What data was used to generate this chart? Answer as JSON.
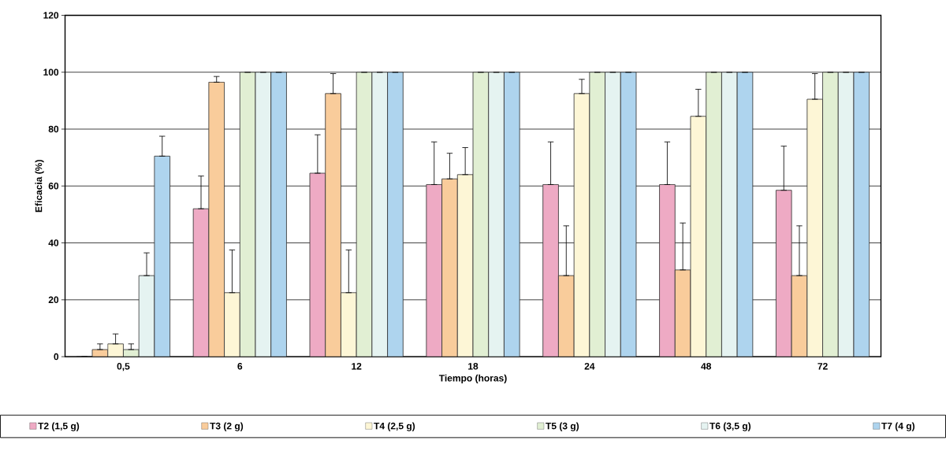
{
  "chart_data": {
    "type": "bar",
    "xlabel": "Tiempo (horas)",
    "ylabel": "Eficacia (%)",
    "categories": [
      "0,5",
      "6",
      "12",
      "18",
      "24",
      "48",
      "72"
    ],
    "ylim": [
      0,
      120
    ],
    "yticks": [
      0,
      20,
      40,
      60,
      80,
      100,
      120
    ],
    "grid": "y",
    "legend": "bottom",
    "series": [
      {
        "name": "T2 (1,5 g)",
        "color": "#eeaac4",
        "values": [
          0,
          52,
          64.5,
          60.5,
          60.5,
          60.5,
          58.5
        ],
        "errors": [
          null,
          [
            52,
            63.5
          ],
          [
            64.5,
            78
          ],
          [
            60.5,
            75.5
          ],
          [
            60.5,
            75.5
          ],
          [
            60.5,
            75.5
          ],
          [
            58.5,
            74
          ]
        ]
      },
      {
        "name": "T3 (2 g)",
        "color": "#f9cc9b",
        "values": [
          2.5,
          96.5,
          92.5,
          62.5,
          28.5,
          30.5,
          28.5
        ],
        "errors": [
          [
            2.5,
            4.5
          ],
          [
            96.5,
            98.5
          ],
          [
            92.5,
            99.5
          ],
          [
            62.5,
            71.5
          ],
          [
            28.5,
            46
          ],
          [
            30.5,
            47
          ],
          [
            28.5,
            46
          ]
        ]
      },
      {
        "name": "T4 (2,5 g)",
        "color": "#fdf6d6",
        "values": [
          4.5,
          22.5,
          22.5,
          64,
          92.5,
          84.5,
          90.5
        ],
        "errors": [
          [
            4.5,
            8
          ],
          [
            22.5,
            37.5
          ],
          [
            22.5,
            37.5
          ],
          [
            64,
            73.5
          ],
          [
            92.5,
            97.5
          ],
          [
            84.5,
            94
          ],
          [
            90.5,
            99.5
          ]
        ]
      },
      {
        "name": "T5 (3 g)",
        "color": "#e1efd3",
        "values": [
          2.5,
          100,
          100,
          100,
          100,
          100,
          100
        ],
        "errors": [
          [
            2.5,
            4.5
          ],
          null,
          null,
          null,
          null,
          null,
          null
        ]
      },
      {
        "name": "T6 (3,5 g)",
        "color": "#e5f3f1",
        "values": [
          28.5,
          100,
          100,
          100,
          100,
          100,
          100
        ],
        "errors": [
          [
            28.5,
            36.5
          ],
          null,
          null,
          null,
          null,
          null,
          null
        ]
      },
      {
        "name": "T7 (4 g)",
        "color": "#aed4ee",
        "values": [
          70.5,
          100,
          100,
          100,
          100,
          100,
          100
        ],
        "errors": [
          [
            70.5,
            77.5
          ],
          null,
          null,
          null,
          null,
          null,
          null
        ]
      }
    ]
  }
}
